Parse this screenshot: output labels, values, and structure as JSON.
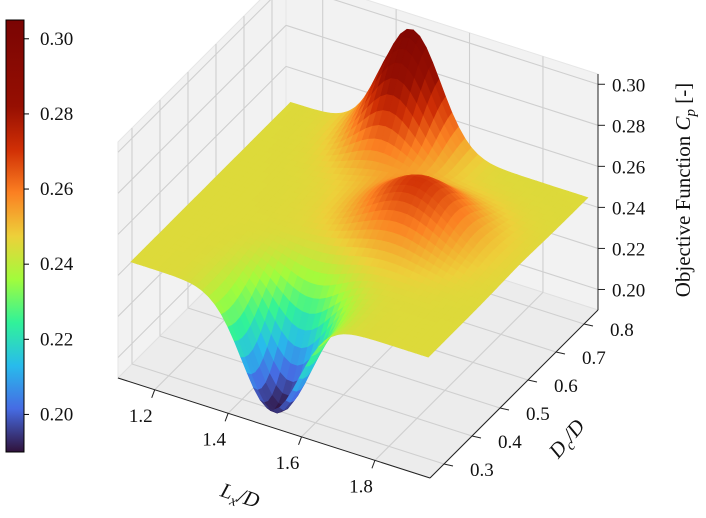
{
  "chart_data": {
    "type": "surface3d",
    "colormap": "turbo",
    "grid": true,
    "colorbar_position": "left",
    "x_axis": {
      "label": "L_x/D",
      "ticks": [
        1.2,
        1.4,
        1.6,
        1.8
      ],
      "tick_labels": [
        "1.2",
        "1.4",
        "1.6",
        "1.8"
      ],
      "range": [
        1.1,
        1.95
      ]
    },
    "y_axis": {
      "label": "D_c/D",
      "ticks": [
        0.3,
        0.4,
        0.5,
        0.6,
        0.7,
        0.8
      ],
      "tick_labels": [
        "0.3",
        "0.4",
        "0.5",
        "0.6",
        "0.7",
        "0.8"
      ],
      "range": [
        0.25,
        0.85
      ]
    },
    "z_axis": {
      "label": "Objective Function C_p [-]",
      "ticks": [
        0.2,
        0.22,
        0.24,
        0.26,
        0.28,
        0.3
      ],
      "tick_labels": [
        "0.20",
        "0.22",
        "0.24",
        "0.26",
        "0.28",
        "0.30"
      ],
      "range": [
        0.19,
        0.305
      ]
    },
    "colorbar": {
      "ticks": [
        0.2,
        0.22,
        0.24,
        0.26,
        0.28,
        0.3
      ],
      "tick_labels": [
        "0.20",
        "0.22",
        "0.24",
        "0.26",
        "0.28",
        "0.30"
      ],
      "range": [
        0.19,
        0.305
      ]
    },
    "surface_features": [
      {
        "feature": "peak",
        "x": 1.45,
        "y": 0.85,
        "z": 0.3
      },
      {
        "feature": "peak",
        "x": 1.65,
        "y": 0.6,
        "z": 0.27
      },
      {
        "feature": "trough",
        "x": 1.5,
        "y": 0.3,
        "z": 0.19
      },
      {
        "feature": "baseline",
        "z": 0.245
      }
    ]
  }
}
